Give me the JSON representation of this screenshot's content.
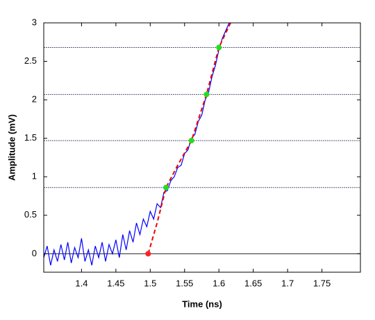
{
  "chart_data": {
    "type": "line",
    "xlabel": "Time (ns)",
    "ylabel": "Amplitude (mV)",
    "xlim": [
      1.345,
      1.806
    ],
    "ylim": [
      -0.24,
      3
    ],
    "xticks": [
      1.4,
      1.45,
      1.5,
      1.55,
      1.6,
      1.65,
      1.7,
      1.75
    ],
    "yticks": [
      0,
      0.5,
      1,
      1.5,
      2,
      2.5,
      3
    ],
    "reference_lines": {
      "values": [
        0,
        0.86,
        1.47,
        2.07,
        2.68
      ],
      "colors": [
        "#222222",
        "#555577",
        "#555577",
        "#555577",
        "#555577"
      ]
    },
    "series": [
      {
        "kind": "signal",
        "color": "#0000ff",
        "x": [
          1.345,
          1.35,
          1.355,
          1.36,
          1.365,
          1.37,
          1.375,
          1.38,
          1.385,
          1.39,
          1.395,
          1.4,
          1.405,
          1.41,
          1.415,
          1.42,
          1.425,
          1.43,
          1.435,
          1.44,
          1.445,
          1.45,
          1.455,
          1.46,
          1.465,
          1.47,
          1.475,
          1.48,
          1.485,
          1.49,
          1.495,
          1.5,
          1.505,
          1.51,
          1.515,
          1.52,
          1.525,
          1.53,
          1.535,
          1.54,
          1.545,
          1.55,
          1.555,
          1.56,
          1.565,
          1.57,
          1.575,
          1.58,
          1.585,
          1.59,
          1.595,
          1.6,
          1.605,
          1.61,
          1.615
        ],
        "values": [
          -0.05,
          0.1,
          -0.15,
          0.05,
          -0.1,
          0.12,
          -0.08,
          0.15,
          -0.12,
          0.08,
          -0.05,
          0.2,
          -0.1,
          0.05,
          -0.15,
          0.1,
          -0.05,
          0.15,
          -0.1,
          0.12,
          0,
          0.18,
          -0.05,
          0.25,
          0.05,
          0.3,
          0.15,
          0.4,
          0.25,
          0.45,
          0.35,
          0.55,
          0.45,
          0.65,
          0.6,
          0.8,
          0.82,
          0.95,
          1,
          1.12,
          1.15,
          1.3,
          1.35,
          1.5,
          1.55,
          1.72,
          1.8,
          2,
          2.1,
          2.3,
          2.45,
          2.65,
          2.8,
          2.9,
          3
        ]
      },
      {
        "kind": "fit",
        "color": "#ee0000",
        "x": [
          1.497,
          1.51,
          1.523,
          1.54,
          1.56,
          1.582,
          1.6,
          1.617
        ],
        "values": [
          0,
          0.4,
          0.86,
          1.15,
          1.47,
          2.07,
          2.68,
          3
        ]
      },
      {
        "kind": "points",
        "color": "#22dd22",
        "x": [
          1.523,
          1.56,
          1.582,
          1.6
        ],
        "values": [
          0.86,
          1.47,
          2.07,
          2.68
        ]
      },
      {
        "kind": "points",
        "color": "#ff2222",
        "x": [
          1.497
        ],
        "values": [
          0
        ]
      }
    ]
  }
}
